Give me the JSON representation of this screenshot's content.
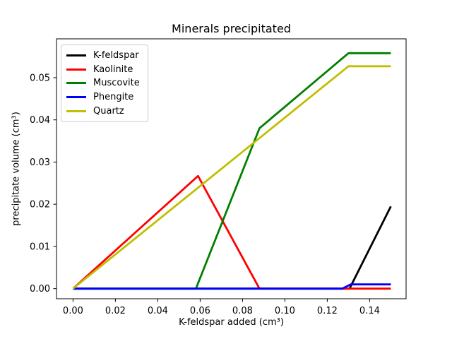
{
  "figure": {
    "background_color": "#ffffff",
    "text_color": "#000000",
    "spine_color": "#000000"
  },
  "chart_data": {
    "type": "line",
    "title": "Minerals precipitated",
    "xlabel": "K-feldspar added (cm³)",
    "ylabel": "precipitate volume (cm³)",
    "xlim": [
      -0.0078,
      0.1572
    ],
    "ylim": [
      -0.0024,
      0.0592
    ],
    "grid": false,
    "xticks": {
      "values": [
        0.0,
        0.02,
        0.04,
        0.06,
        0.08,
        0.1,
        0.12,
        0.14
      ],
      "labels": [
        "0.00",
        "0.02",
        "0.04",
        "0.06",
        "0.08",
        "0.10",
        "0.12",
        "0.14"
      ]
    },
    "yticks": {
      "values": [
        0.0,
        0.01,
        0.02,
        0.03,
        0.04,
        0.05
      ],
      "labels": [
        "0.00",
        "0.01",
        "0.02",
        "0.03",
        "0.04",
        "0.05"
      ]
    },
    "legend": {
      "location": "upper left",
      "border_color": "#cccccc"
    },
    "series": [
      {
        "name": "K-feldspar",
        "color": "#000000",
        "points": [
          [
            0.0,
            0.0
          ],
          [
            0.1305,
            0.0
          ],
          [
            0.15,
            0.0195
          ]
        ]
      },
      {
        "name": "Kaolinite",
        "color": "#ff0000",
        "points": [
          [
            0.0,
            0.0
          ],
          [
            0.059,
            0.0267
          ],
          [
            0.088,
            0.0
          ],
          [
            0.15,
            0.0
          ]
        ]
      },
      {
        "name": "Muscovite",
        "color": "#008000",
        "points": [
          [
            0.0,
            0.0
          ],
          [
            0.058,
            0.0
          ],
          [
            0.088,
            0.038
          ],
          [
            0.13,
            0.0558
          ],
          [
            0.15,
            0.0558
          ]
        ]
      },
      {
        "name": "Phengite",
        "color": "#0000ff",
        "points": [
          [
            0.0,
            0.0
          ],
          [
            0.127,
            0.0
          ],
          [
            0.131,
            0.001
          ],
          [
            0.15,
            0.001
          ]
        ]
      },
      {
        "name": "Quartz",
        "color": "#bfbf00",
        "points": [
          [
            0.0,
            0.0
          ],
          [
            0.13,
            0.0527
          ],
          [
            0.15,
            0.0527
          ]
        ]
      }
    ]
  }
}
